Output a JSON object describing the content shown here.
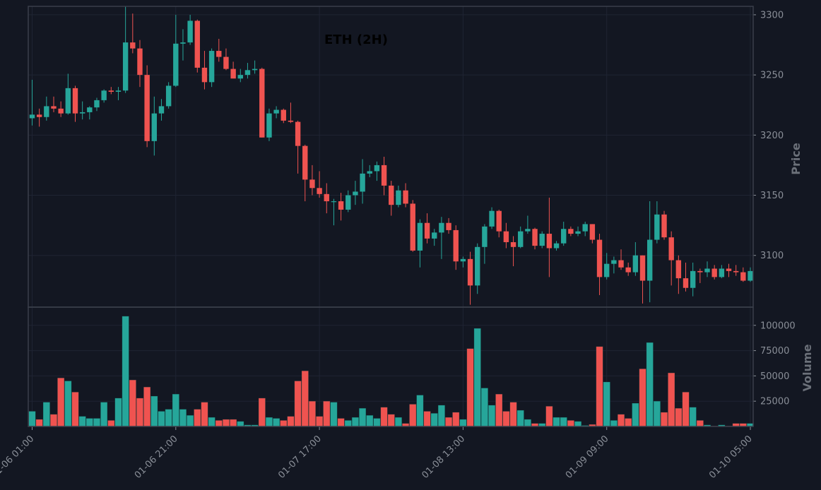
{
  "chart_data": {
    "type": "candlestick",
    "title": "ETH (2H)",
    "price_ylabel": "Price",
    "volume_ylabel": "Volume",
    "price_ylim": [
      3057,
      3307
    ],
    "volume_ylim": [
      0,
      118000
    ],
    "price_ticks": [
      "3100",
      "3150",
      "3200",
      "3250",
      "3300"
    ],
    "volume_ticks": [
      "25000",
      "50000",
      "75000",
      "100000"
    ],
    "x_tick_labels": [
      {
        "index": 0,
        "label": "01-06 01:00"
      },
      {
        "index": 20,
        "label": "01-06 21:00"
      },
      {
        "index": 40,
        "label": "01-07 17:00"
      },
      {
        "index": 60,
        "label": "01-08 13:00"
      },
      {
        "index": 80,
        "label": "01-09 09:00"
      },
      {
        "index": 100,
        "label": "01-10 05:00"
      }
    ],
    "colors": {
      "up": "#26a69a",
      "down": "#ef5350",
      "background": "#131722",
      "grid": "#1f2433",
      "axis": "#3a3f4a"
    },
    "candles": [
      [
        3214,
        3246,
        3208,
        3217,
        15000
      ],
      [
        3217,
        3222,
        3207,
        3215,
        7000
      ],
      [
        3215,
        3232,
        3212,
        3224,
        24000
      ],
      [
        3224,
        3232,
        3219,
        3222,
        12000
      ],
      [
        3222,
        3228,
        3215,
        3218,
        48000
      ],
      [
        3218,
        3251,
        3217,
        3239,
        45000
      ],
      [
        3239,
        3241,
        3211,
        3218,
        34000
      ],
      [
        3218,
        3228,
        3213,
        3219,
        10000
      ],
      [
        3219,
        3224,
        3213,
        3223,
        8000
      ],
      [
        3223,
        3231,
        3220,
        3229,
        8000
      ],
      [
        3229,
        3238,
        3227,
        3237,
        24000
      ],
      [
        3237,
        3240,
        3234,
        3236,
        6000
      ],
      [
        3236,
        3240,
        3229,
        3237,
        28000
      ],
      [
        3237,
        3307,
        3235,
        3277,
        109000
      ],
      [
        3277,
        3301,
        3268,
        3272,
        46000
      ],
      [
        3272,
        3279,
        3240,
        3250,
        28000
      ],
      [
        3250,
        3258,
        3190,
        3195,
        39000
      ],
      [
        3195,
        3232,
        3183,
        3218,
        30000
      ],
      [
        3218,
        3230,
        3212,
        3224,
        15000
      ],
      [
        3224,
        3244,
        3222,
        3241,
        17000
      ],
      [
        3241,
        3300,
        3240,
        3276,
        32000
      ],
      [
        3276,
        3288,
        3262,
        3277,
        17000
      ],
      [
        3277,
        3300,
        3275,
        3295,
        11000
      ],
      [
        3295,
        3296,
        3252,
        3256,
        17000
      ],
      [
        3256,
        3270,
        3238,
        3244,
        24000
      ],
      [
        3244,
        3272,
        3240,
        3270,
        9000
      ],
      [
        3270,
        3280,
        3261,
        3265,
        6000
      ],
      [
        3265,
        3272,
        3254,
        3255,
        7000
      ],
      [
        3255,
        3261,
        3248,
        3247,
        7000
      ],
      [
        3247,
        3255,
        3244,
        3250,
        5000
      ],
      [
        3250,
        3260,
        3247,
        3254,
        1500
      ],
      [
        3254,
        3262,
        3251,
        3255,
        1500
      ],
      [
        3255,
        3256,
        3198,
        3198,
        28000
      ],
      [
        3198,
        3222,
        3195,
        3218,
        9000
      ],
      [
        3218,
        3224,
        3214,
        3221,
        8000
      ],
      [
        3221,
        3222,
        3210,
        3212,
        6000
      ],
      [
        3212,
        3227,
        3210,
        3211,
        10000
      ],
      [
        3211,
        3212,
        3168,
        3191,
        45000
      ],
      [
        3191,
        3192,
        3145,
        3163,
        55000
      ],
      [
        3163,
        3175,
        3150,
        3156,
        25000
      ],
      [
        3156,
        3170,
        3148,
        3151,
        10000
      ],
      [
        3151,
        3160,
        3135,
        3145,
        25000
      ],
      [
        3145,
        3147,
        3125,
        3145,
        24000
      ],
      [
        3145,
        3152,
        3129,
        3138,
        8000
      ],
      [
        3138,
        3154,
        3136,
        3150,
        6000
      ],
      [
        3150,
        3162,
        3142,
        3153,
        9000
      ],
      [
        3153,
        3180,
        3143,
        3168,
        18000
      ],
      [
        3168,
        3175,
        3165,
        3170,
        11000
      ],
      [
        3170,
        3178,
        3162,
        3175,
        8000
      ],
      [
        3175,
        3182,
        3150,
        3158,
        19000
      ],
      [
        3158,
        3162,
        3133,
        3142,
        12000
      ],
      [
        3142,
        3158,
        3140,
        3154,
        9000
      ],
      [
        3154,
        3160,
        3140,
        3143,
        3000
      ],
      [
        3143,
        3146,
        3103,
        3104,
        22000
      ],
      [
        3104,
        3130,
        3090,
        3127,
        31000
      ],
      [
        3127,
        3135,
        3110,
        3114,
        15000
      ],
      [
        3114,
        3122,
        3108,
        3119,
        13000
      ],
      [
        3119,
        3132,
        3097,
        3127,
        21000
      ],
      [
        3127,
        3131,
        3118,
        3121,
        9000
      ],
      [
        3121,
        3125,
        3088,
        3095,
        14000
      ],
      [
        3095,
        3099,
        3090,
        3097,
        7000
      ],
      [
        3097,
        3103,
        3059,
        3075,
        77000
      ],
      [
        3075,
        3110,
        3068,
        3107,
        97000
      ],
      [
        3107,
        3126,
        3093,
        3124,
        38000
      ],
      [
        3124,
        3140,
        3122,
        3137,
        21000
      ],
      [
        3137,
        3138,
        3115,
        3120,
        32000
      ],
      [
        3120,
        3127,
        3106,
        3111,
        15000
      ],
      [
        3111,
        3116,
        3091,
        3107,
        24000
      ],
      [
        3107,
        3124,
        3106,
        3120,
        16000
      ],
      [
        3120,
        3133,
        3118,
        3122,
        7000
      ],
      [
        3122,
        3123,
        3105,
        3108,
        3000
      ],
      [
        3108,
        3120,
        3106,
        3118,
        3000
      ],
      [
        3118,
        3148,
        3082,
        3106,
        20000
      ],
      [
        3106,
        3112,
        3104,
        3110,
        9000
      ],
      [
        3110,
        3128,
        3108,
        3122,
        9000
      ],
      [
        3122,
        3124,
        3116,
        3118,
        6000
      ],
      [
        3118,
        3124,
        3116,
        3120,
        5000
      ],
      [
        3120,
        3128,
        3116,
        3126,
        1000
      ],
      [
        3126,
        3126,
        3110,
        3113,
        2000
      ],
      [
        3113,
        3118,
        3067,
        3082,
        79000
      ],
      [
        3082,
        3102,
        3080,
        3093,
        44000
      ],
      [
        3093,
        3099,
        3085,
        3096,
        6000
      ],
      [
        3096,
        3105,
        3088,
        3090,
        12000
      ],
      [
        3090,
        3094,
        3083,
        3086,
        8000
      ],
      [
        3086,
        3111,
        3083,
        3100,
        23000
      ],
      [
        3100,
        3100,
        3060,
        3079,
        57000
      ],
      [
        3079,
        3145,
        3061,
        3113,
        83000
      ],
      [
        3113,
        3145,
        3110,
        3134,
        25000
      ],
      [
        3134,
        3137,
        3113,
        3115,
        14000
      ],
      [
        3115,
        3120,
        3075,
        3096,
        53000
      ],
      [
        3096,
        3100,
        3068,
        3081,
        18000
      ],
      [
        3081,
        3094,
        3070,
        3073,
        34000
      ],
      [
        3073,
        3094,
        3066,
        3087,
        19000
      ],
      [
        3087,
        3089,
        3077,
        3086,
        6000
      ],
      [
        3086,
        3095,
        3082,
        3089,
        1500
      ],
      [
        3089,
        3092,
        3080,
        3082,
        500
      ],
      [
        3082,
        3092,
        3081,
        3089,
        1500
      ],
      [
        3089,
        3093,
        3082,
        3087,
        500
      ],
      [
        3087,
        3092,
        3083,
        3086,
        3000
      ],
      [
        3086,
        3090,
        3078,
        3079,
        3000
      ],
      [
        3079,
        3090,
        3078,
        3087,
        3000
      ]
    ]
  }
}
